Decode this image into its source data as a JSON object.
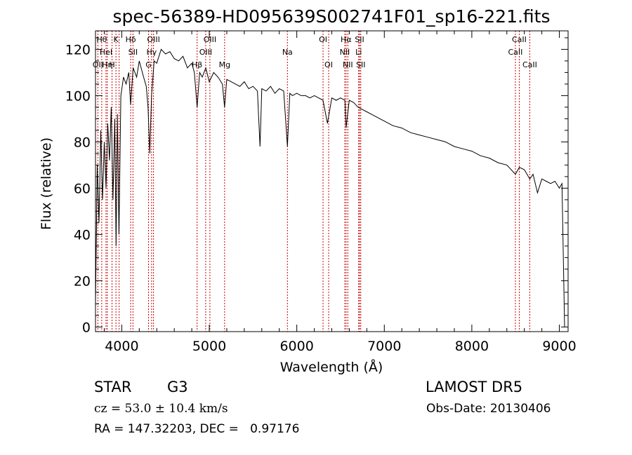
{
  "chart_data": {
    "type": "line",
    "title": "spec-56389-HD095639S002741F01_sp16-221.fits",
    "xlabel": "Wavelength (Å)",
    "ylabel": "Flux (relative)",
    "xlim": [
      3700,
      9100
    ],
    "ylim": [
      -2,
      128
    ],
    "x_ticks": [
      4000,
      5000,
      6000,
      7000,
      8000,
      9000
    ],
    "y_ticks": [
      0,
      20,
      40,
      60,
      80,
      100,
      120
    ],
    "x_tick_labels": [
      "4000",
      "5000",
      "6000",
      "7000",
      "8000",
      "9000"
    ],
    "y_tick_labels": [
      "0",
      "20",
      "40",
      "60",
      "80",
      "100",
      "120"
    ],
    "line_color": "#000000",
    "marker_color": "#cc0000",
    "series": [
      {
        "x": [
          3700,
          3720,
          3740,
          3760,
          3780,
          3800,
          3820,
          3840,
          3860,
          3880,
          3900,
          3920,
          3935,
          3950,
          3968,
          3990,
          4020,
          4050,
          4080,
          4101,
          4130,
          4170,
          4200,
          4250,
          4280,
          4300,
          4320,
          4340,
          4370,
          4400,
          4450,
          4500,
          4550,
          4600,
          4650,
          4700,
          4750,
          4800,
          4830,
          4861,
          4890,
          4920,
          4960,
          5000,
          5050,
          5100,
          5150,
          5175,
          5200,
          5250,
          5300,
          5350,
          5400,
          5450,
          5500,
          5550,
          5580,
          5600,
          5650,
          5700,
          5750,
          5800,
          5850,
          5893,
          5920,
          5950,
          6000,
          6050,
          6100,
          6150,
          6200,
          6250,
          6300,
          6350,
          6400,
          6450,
          6500,
          6550,
          6563,
          6600,
          6650,
          6700,
          6750,
          6800,
          6850,
          6900,
          6950,
          7000,
          7100,
          7200,
          7300,
          7400,
          7500,
          7600,
          7700,
          7800,
          7900,
          8000,
          8100,
          8200,
          8300,
          8400,
          8498,
          8542,
          8600,
          8662,
          8700,
          8750,
          8800,
          8850,
          8900,
          8950,
          9000,
          9030,
          9060
        ],
        "y": [
          10,
          70,
          45,
          85,
          55,
          80,
          60,
          88,
          72,
          95,
          55,
          90,
          35,
          92,
          40,
          100,
          108,
          105,
          110,
          96,
          112,
          108,
          115,
          108,
          104,
          95,
          75,
          100,
          115,
          114,
          120,
          118,
          119,
          116,
          115,
          117,
          112,
          114,
          110,
          95,
          110,
          108,
          112,
          106,
          110,
          108,
          105,
          95,
          107,
          106,
          105,
          104,
          106,
          103,
          104,
          102,
          78,
          103,
          102,
          104,
          101,
          103,
          102,
          78,
          101,
          100,
          101,
          100,
          100,
          99,
          100,
          99,
          98,
          88,
          99,
          98,
          99,
          98,
          86,
          98,
          97,
          95,
          94,
          93,
          92,
          91,
          90,
          89,
          87,
          86,
          84,
          83,
          82,
          81,
          80,
          78,
          77,
          76,
          74,
          73,
          71,
          70,
          66,
          69,
          68,
          64,
          66,
          58,
          64,
          63,
          62,
          63,
          60,
          62,
          0
        ]
      }
    ],
    "spectral_lines": [
      {
        "wavelength": 3727,
        "label": "OII",
        "row": 3
      },
      {
        "wavelength": 3771,
        "label": "Hθ",
        "row": 1
      },
      {
        "wavelength": 3820,
        "label": "HeI",
        "row": 2
      },
      {
        "wavelength": 3835,
        "label": "Hη",
        "row": 3
      },
      {
        "wavelength": 3889,
        "label": "H",
        "row": 3
      },
      {
        "wavelength": 3934,
        "label": "K",
        "row": 1
      },
      {
        "wavelength": 3970,
        "label": "",
        "row": 0
      },
      {
        "wavelength": 4102,
        "label": "Hδ",
        "row": 1
      },
      {
        "wavelength": 4128,
        "label": "SII",
        "row": 2
      },
      {
        "wavelength": 4306,
        "label": "G",
        "row": 3
      },
      {
        "wavelength": 4341,
        "label": "Hγ",
        "row": 2
      },
      {
        "wavelength": 4363,
        "label": "OIII",
        "row": 1
      },
      {
        "wavelength": 4861,
        "label": "Hβ",
        "row": 3
      },
      {
        "wavelength": 4959,
        "label": "OIII",
        "row": 2
      },
      {
        "wavelength": 5007,
        "label": "OIII",
        "row": 1
      },
      {
        "wavelength": 5175,
        "label": "Mg",
        "row": 3
      },
      {
        "wavelength": 5893,
        "label": "Na",
        "row": 2
      },
      {
        "wavelength": 6300,
        "label": "OI",
        "row": 1
      },
      {
        "wavelength": 6364,
        "label": "OI",
        "row": 3
      },
      {
        "wavelength": 6548,
        "label": "NII",
        "row": 2
      },
      {
        "wavelength": 6563,
        "label": "Hα",
        "row": 1
      },
      {
        "wavelength": 6583,
        "label": "NII",
        "row": 3
      },
      {
        "wavelength": 6707,
        "label": "Li",
        "row": 2
      },
      {
        "wavelength": 6717,
        "label": "SII",
        "row": 1
      },
      {
        "wavelength": 6731,
        "label": "SII",
        "row": 3
      },
      {
        "wavelength": 8498,
        "label": "CaII",
        "row": 2
      },
      {
        "wavelength": 8542,
        "label": "CaII",
        "row": 1
      },
      {
        "wavelength": 8662,
        "label": "CaII",
        "row": 3
      }
    ]
  },
  "info": {
    "class_label": "STAR",
    "subclass": "G3",
    "survey": "LAMOST DR5",
    "cz": "cz = 53.0 ± 10.4 km/s",
    "obs_date": "Obs-Date: 20130406",
    "coords": "RA = 147.32203, DEC =   0.97176"
  }
}
